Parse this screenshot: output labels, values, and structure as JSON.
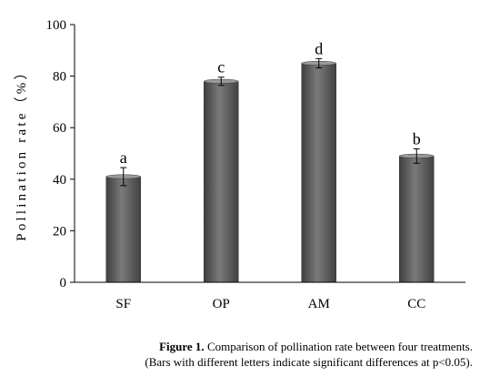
{
  "chart_data": {
    "type": "bar",
    "categories": [
      "SF",
      "OP",
      "AM",
      "CC"
    ],
    "values": [
      41,
      78,
      85,
      49
    ],
    "errors": [
      3.5,
      1.6,
      1.8,
      2.8
    ],
    "significance_letters": [
      "a",
      "c",
      "d",
      "b"
    ],
    "ylabel": "Pollination rate（%）",
    "xlabel": "",
    "ylim": [
      0,
      100
    ],
    "yticks": [
      "0",
      "20",
      "40",
      "60",
      "80",
      "100"
    ],
    "bar_color": "#5c5c5c",
    "grid": false,
    "legend": "none"
  },
  "caption": {
    "figure_label": "Figure 1.",
    "line1_text": "Comparison of pollination rate between four treatments.",
    "line2": "(Bars with different letters indicate significant differences at p<0.05)."
  }
}
